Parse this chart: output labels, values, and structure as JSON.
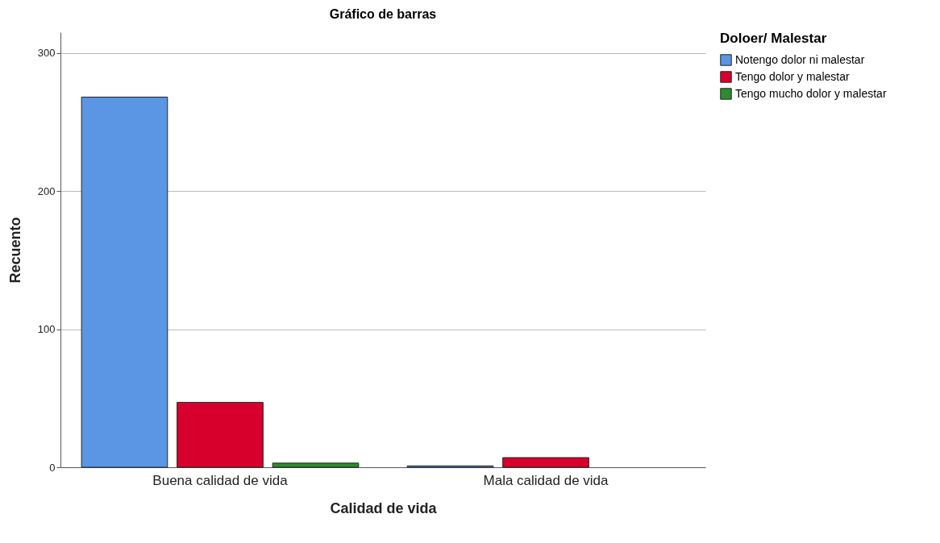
{
  "chart_data": {
    "type": "bar",
    "title": "Gráfico de barras",
    "xlabel": "Calidad de vida",
    "ylabel": "Recuento",
    "legend_title": "Doloer/ Malestar",
    "categories": [
      "Buena calidad de vida",
      "Mala calidad de vida"
    ],
    "series": [
      {
        "name": "Notengo dolor ni  malestar",
        "color": "#5a96e3",
        "values": [
          268,
          1
        ]
      },
      {
        "name": "Tengo dolor  y malestar",
        "color": "#d7002d",
        "values": [
          47,
          7
        ]
      },
      {
        "name": "Tengo mucho dolor y malestar",
        "color": "#2e8b30",
        "values": [
          3,
          null
        ]
      }
    ],
    "ylim": [
      0,
      315
    ],
    "yticks": [
      0,
      100,
      200,
      300
    ],
    "grid": "y",
    "legend": "top right"
  }
}
